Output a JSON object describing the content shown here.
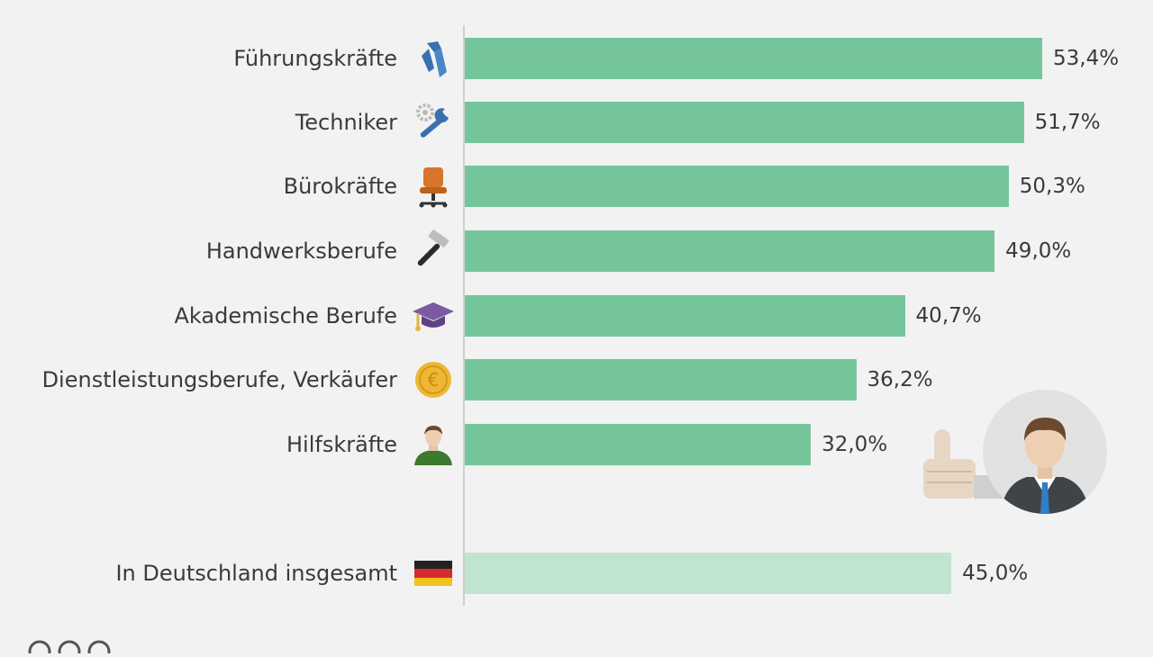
{
  "chart_data": {
    "type": "bar",
    "orientation": "horizontal",
    "categories": [
      "Führungskräfte",
      "Techniker",
      "Bürokräfte",
      "Handwerksberufe",
      "Akademische Berufe",
      "Dienstleistungsberufe, Verkäufer",
      "Hilfskräfte",
      "In Deutschland insgesamt"
    ],
    "values": [
      53.4,
      51.7,
      50.3,
      49.0,
      40.7,
      36.2,
      32.0,
      45.0
    ],
    "value_labels": [
      "53,4%",
      "51,7%",
      "50,3%",
      "49,0%",
      "40,7%",
      "36,2%",
      "32,0%",
      "45,0%"
    ],
    "icons": [
      "tie-icon",
      "gear-wrench-icon",
      "office-chair-icon",
      "hammer-icon",
      "graduation-cap-icon",
      "euro-coin-icon",
      "worker-icon",
      "germany-flag-icon"
    ],
    "xlim": [
      0,
      60
    ],
    "grid": false,
    "colors": {
      "bar": "#74c69a",
      "total_bar": "#bfe5cf",
      "axis": "#cfcfcf"
    }
  }
}
